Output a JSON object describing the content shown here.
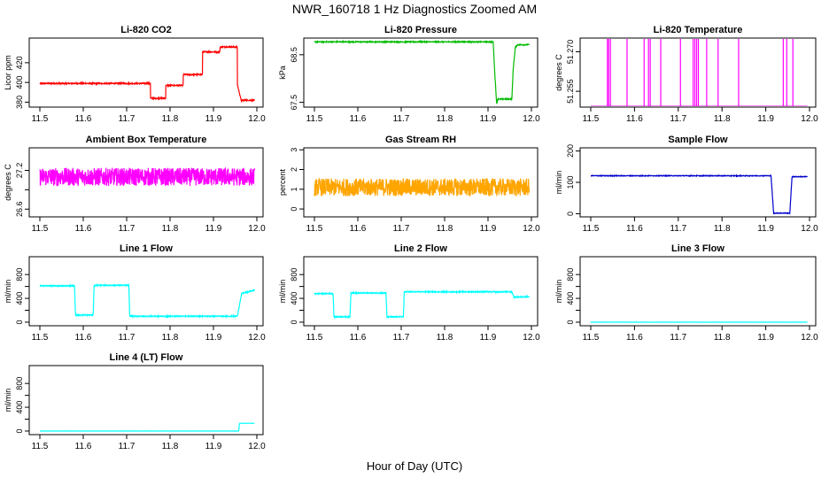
{
  "figure": {
    "title": "NWR_160718  1 Hz Diagnostics Zoomed AM",
    "xlabel": "Hour of Day (UTC)"
  },
  "chart_data": [
    {
      "type": "line",
      "title": "Li-820 CO2",
      "ylabel": "Licor ppm",
      "color": "#ff0000",
      "xlim": [
        11.5,
        12.0
      ],
      "ylim": [
        375,
        445
      ],
      "xticks": [
        11.5,
        11.6,
        11.7,
        11.8,
        11.9,
        12.0
      ],
      "yticks": [
        380,
        400,
        420
      ],
      "ytick_labels": [
        "380",
        "400",
        "420"
      ],
      "noise": 0.6,
      "series": [
        {
          "x": [
            11.5,
            11.755,
            11.755,
            11.79,
            11.79,
            11.83,
            11.83,
            11.875,
            11.875,
            11.915,
            11.915,
            11.955,
            11.955,
            11.965,
            11.965,
            11.995
          ],
          "y": [
            399,
            399,
            384,
            384,
            397,
            397,
            408,
            408,
            431,
            431,
            436,
            436,
            398,
            380,
            382,
            382
          ]
        }
      ]
    },
    {
      "type": "line",
      "title": "Li-820 Pressure",
      "ylabel": "kPa",
      "color": "#00bb00",
      "xlim": [
        11.5,
        12.0
      ],
      "ylim": [
        67.4,
        68.85
      ],
      "xticks": [
        11.5,
        11.6,
        11.7,
        11.8,
        11.9,
        12.0
      ],
      "yticks": [
        67.5,
        68.5
      ],
      "ytick_labels": [
        "67.5",
        "68.5"
      ],
      "noise": 0.01,
      "series": [
        {
          "x": [
            11.5,
            11.912,
            11.915,
            11.92,
            11.922,
            11.955,
            11.958,
            11.963,
            11.968,
            11.995
          ],
          "y": [
            68.77,
            68.77,
            68.2,
            67.45,
            67.57,
            67.57,
            68.2,
            68.66,
            68.71,
            68.71
          ]
        }
      ]
    },
    {
      "type": "line",
      "title": "Li-820 Temperature",
      "ylabel": "degrees C",
      "color": "#ff00ff",
      "xlim": [
        11.5,
        12.0
      ],
      "ylim": [
        51.249,
        51.2752
      ],
      "xticks": [
        11.5,
        11.6,
        11.7,
        11.8,
        11.9,
        12.0
      ],
      "yticks": [
        51.255,
        51.27
      ],
      "ytick_labels": [
        "51.255",
        "51.270"
      ],
      "noise": 0,
      "spike_base": 51.2493,
      "spikes": [
        11.538,
        11.541,
        11.545,
        11.583,
        11.622,
        11.632,
        11.636,
        11.66,
        11.705,
        11.734,
        11.738,
        11.742,
        11.746,
        11.765,
        11.791,
        11.838,
        11.94,
        11.948,
        11.962
      ]
    },
    {
      "type": "line",
      "title": "Ambient Box Temperature",
      "ylabel": "degrees C",
      "color": "#ff00ff",
      "xlim": [
        11.5,
        12.0
      ],
      "ylim": [
        26.48,
        27.55
      ],
      "xticks": [
        11.5,
        11.6,
        11.7,
        11.8,
        11.9,
        12.0
      ],
      "yticks": [
        26.6,
        26.9,
        27.2
      ],
      "ytick_labels": [
        "26.6",
        "",
        "27.2"
      ],
      "noise": 0.14,
      "series": [
        {
          "x": [
            11.5,
            11.995
          ],
          "y": [
            27.1,
            27.1
          ]
        }
      ]
    },
    {
      "type": "line",
      "title": "Gas Stream RH",
      "ylabel": "percent",
      "color": "#ffa500",
      "xlim": [
        11.5,
        12.0
      ],
      "ylim": [
        -0.4,
        3.1
      ],
      "xticks": [
        11.5,
        11.6,
        11.7,
        11.8,
        11.9,
        12.0
      ],
      "yticks": [
        0,
        1,
        2,
        3
      ],
      "ytick_labels": [
        "0",
        "1",
        "2",
        "3"
      ],
      "noise": 0.45,
      "series": [
        {
          "x": [
            11.5,
            11.995
          ],
          "y": [
            1.1,
            1.1
          ]
        }
      ]
    },
    {
      "type": "line",
      "title": "Sample Flow",
      "ylabel": "ml/min",
      "color": "#0000cc",
      "xlim": [
        11.5,
        12.0
      ],
      "ylim": [
        -10,
        210
      ],
      "xticks": [
        11.5,
        11.6,
        11.7,
        11.8,
        11.9,
        12.0
      ],
      "yticks": [
        0,
        100,
        200
      ],
      "ytick_labels": [
        "0",
        "100",
        "200"
      ],
      "noise": 1,
      "series": [
        {
          "x": [
            11.5,
            11.912,
            11.918,
            11.955,
            11.96,
            11.995
          ],
          "y": [
            121,
            121,
            2,
            2,
            118,
            118
          ]
        }
      ]
    },
    {
      "type": "line",
      "title": "Line 1 Flow",
      "ylabel": "ml/min",
      "color": "#00ffff",
      "xlim": [
        11.5,
        12.0
      ],
      "ylim": [
        -60,
        1100
      ],
      "xticks": [
        11.5,
        11.6,
        11.7,
        11.8,
        11.9,
        12.0
      ],
      "yticks": [
        0,
        200,
        400,
        600,
        800
      ],
      "ytick_labels": [
        "0",
        "",
        "400",
        "",
        "800"
      ],
      "noise": 8,
      "series": [
        {
          "x": [
            11.5,
            11.58,
            11.582,
            11.623,
            11.625,
            11.705,
            11.707,
            11.955,
            11.965,
            11.995
          ],
          "y": [
            610,
            610,
            120,
            120,
            620,
            620,
            100,
            100,
            480,
            540
          ]
        }
      ]
    },
    {
      "type": "line",
      "title": "Line 2 Flow",
      "ylabel": "ml/min",
      "color": "#00ffff",
      "xlim": [
        11.5,
        12.0
      ],
      "ylim": [
        -60,
        1100
      ],
      "xticks": [
        11.5,
        11.6,
        11.7,
        11.8,
        11.9,
        12.0
      ],
      "yticks": [
        0,
        200,
        400,
        600,
        800
      ],
      "ytick_labels": [
        "0",
        "",
        "400",
        "",
        "800"
      ],
      "noise": 8,
      "series": [
        {
          "x": [
            11.5,
            11.543,
            11.545,
            11.582,
            11.584,
            11.665,
            11.667,
            11.705,
            11.707,
            11.955,
            11.96,
            11.995
          ],
          "y": [
            480,
            480,
            90,
            90,
            490,
            490,
            90,
            90,
            510,
            510,
            420,
            430
          ]
        }
      ]
    },
    {
      "type": "line",
      "title": "Line 3 Flow",
      "ylabel": "ml/min",
      "color": "#00ffff",
      "xlim": [
        11.5,
        12.0
      ],
      "ylim": [
        -60,
        1100
      ],
      "xticks": [
        11.5,
        11.6,
        11.7,
        11.8,
        11.9,
        12.0
      ],
      "yticks": [
        0,
        200,
        400,
        600,
        800
      ],
      "ytick_labels": [
        "0",
        "",
        "400",
        "",
        "800"
      ],
      "noise": 1,
      "series": [
        {
          "x": [
            11.5,
            11.995
          ],
          "y": [
            0,
            0
          ]
        }
      ]
    },
    {
      "type": "line",
      "title": "Line 4 (LT) Flow",
      "ylabel": "ml/min",
      "color": "#00ffff",
      "xlim": [
        11.5,
        12.0
      ],
      "ylim": [
        -60,
        1100
      ],
      "xticks": [
        11.5,
        11.6,
        11.7,
        11.8,
        11.9,
        12.0
      ],
      "yticks": [
        0,
        200,
        400,
        600,
        800
      ],
      "ytick_labels": [
        "0",
        "",
        "400",
        "",
        "800"
      ],
      "noise": 1,
      "series": [
        {
          "x": [
            11.5,
            11.958,
            11.96,
            11.995
          ],
          "y": [
            0,
            0,
            130,
            130
          ]
        }
      ]
    }
  ]
}
